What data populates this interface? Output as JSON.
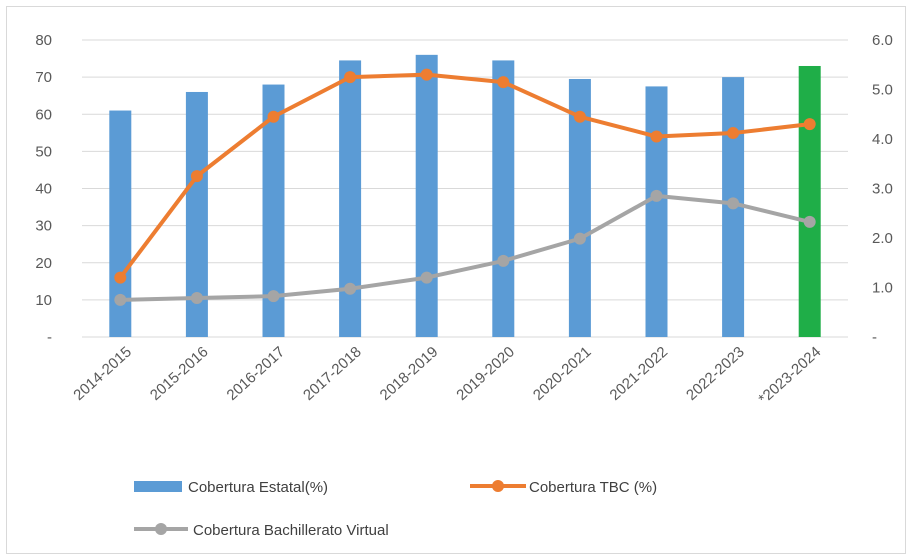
{
  "chart_data": {
    "type": "bar",
    "categories": [
      "2014-2015",
      "2015-2016",
      "2016-2017",
      "2017-2018",
      "2018-2019",
      "2019-2020",
      "2020-2021",
      "2021-2022",
      "2022-2023",
      "*2023-2024"
    ],
    "series": [
      {
        "name": "Cobertura Estatal(%)",
        "type": "bar",
        "axis": "left",
        "values": [
          61,
          66,
          68,
          74.5,
          76,
          74.5,
          69.5,
          67.5,
          70,
          73
        ],
        "color": "#5b9bd5",
        "highlight": {
          "index": 9,
          "color": "#1fae48"
        }
      },
      {
        "name": "Cobertura TBC (%)",
        "type": "line",
        "axis": "right",
        "values": [
          1.2,
          3.25,
          4.45,
          5.25,
          5.3,
          5.15,
          4.45,
          4.05,
          4.12,
          4.3
        ],
        "color": "#ed7d31"
      },
      {
        "name": "Cobertura Bachillerato Virtual",
        "type": "line",
        "axis": "left",
        "values": [
          10,
          10.5,
          11,
          13,
          16,
          20.5,
          26.5,
          38,
          36,
          31
        ],
        "color": "#a5a5a5"
      }
    ],
    "y_left": {
      "min": 0,
      "max": 80,
      "ticks": [
        "-",
        "10",
        "20",
        "30",
        "40",
        "50",
        "60",
        "70",
        "80"
      ]
    },
    "y_right": {
      "min": 0,
      "max": 6,
      "ticks": [
        "-",
        "1.0",
        "2.0",
        "3.0",
        "4.0",
        "5.0",
        "6.0"
      ]
    },
    "grid": true,
    "legend": "bottom"
  }
}
